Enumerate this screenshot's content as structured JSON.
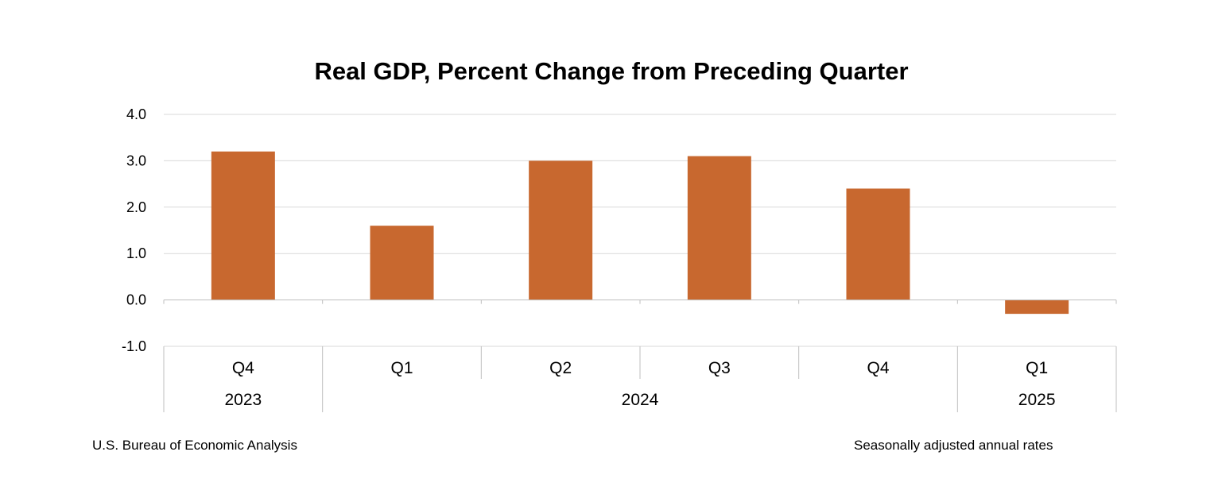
{
  "chart_data": {
    "type": "bar",
    "title": "Real GDP, Percent Change from Preceding Quarter",
    "xlabel": "",
    "ylabel": "",
    "ylim": [
      -1.0,
      4.0
    ],
    "yticks": [
      "4.0",
      "3.0",
      "2.0",
      "1.0",
      "0.0",
      "-1.0"
    ],
    "grid": true,
    "categories": [
      "Q4",
      "Q1",
      "Q2",
      "Q3",
      "Q4",
      "Q1"
    ],
    "year_groups": [
      {
        "label": "2023",
        "span": 1
      },
      {
        "label": "2024",
        "span": 4
      },
      {
        "label": "2025",
        "span": 1
      }
    ],
    "values": [
      3.2,
      1.6,
      3.0,
      3.1,
      2.4,
      -0.3
    ],
    "bar_color": "#C8682F"
  },
  "footer": {
    "source": "U.S. Bureau of Economic Analysis",
    "note": "Seasonally adjusted annual rates"
  },
  "colors": {
    "grid": "#D9D9D9",
    "axis": "#BFBFBF"
  }
}
